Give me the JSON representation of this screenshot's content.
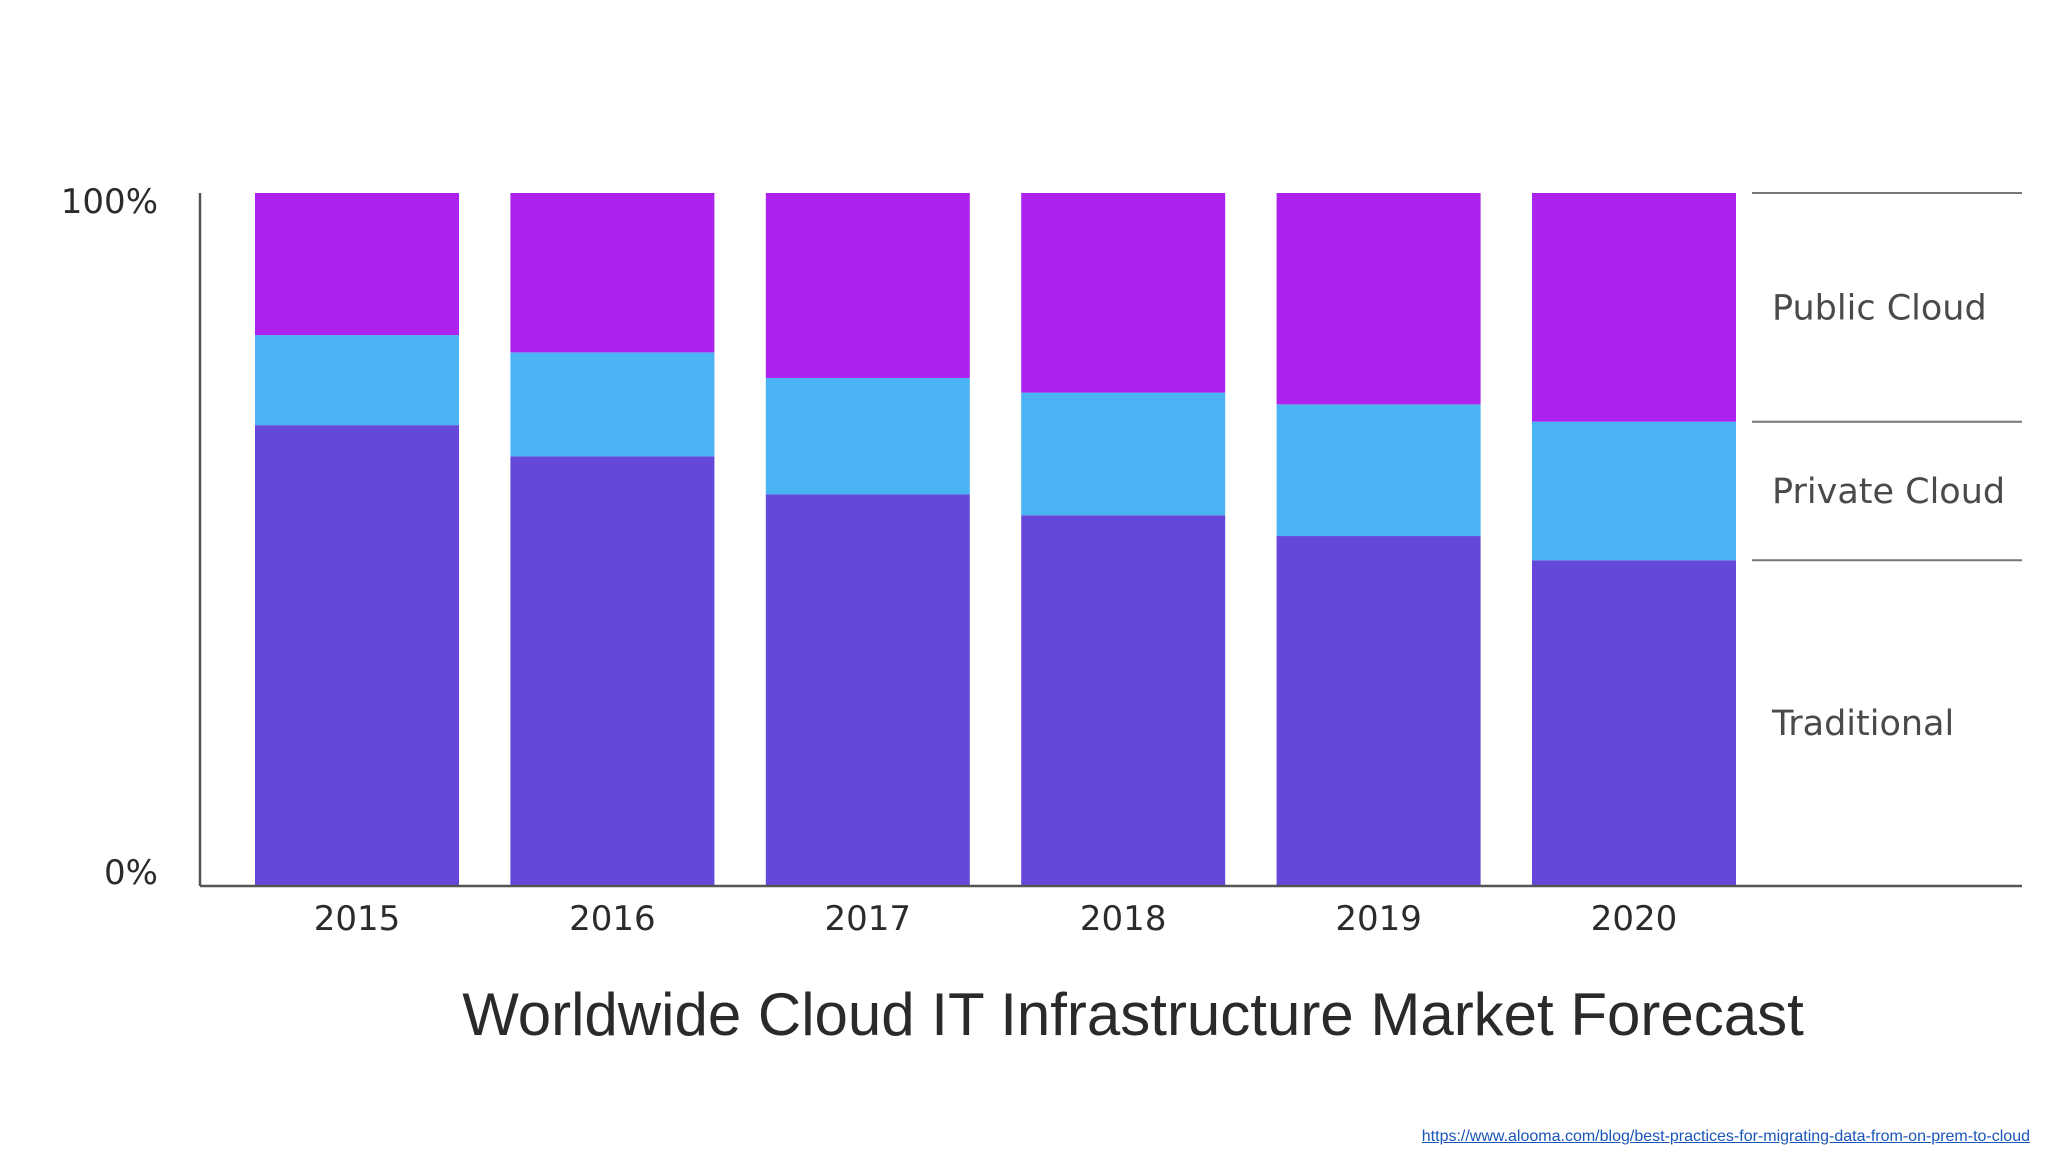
{
  "chart_data": {
    "type": "bar",
    "stacked": true,
    "title": "Worldwide Cloud IT Infrastructure Market Forecast",
    "categories": [
      "2015",
      "2016",
      "2017",
      "2018",
      "2019",
      "2020"
    ],
    "series": [
      {
        "name": "Traditional",
        "values": [
          66.5,
          62,
          56.5,
          53.5,
          50.5,
          47
        ],
        "color": "#6547d9"
      },
      {
        "name": "Private Cloud",
        "values": [
          13,
          15,
          16.8,
          17.7,
          19,
          20
        ],
        "color": "#4ab3f4"
      },
      {
        "name": "Public Cloud",
        "values": [
          20.5,
          23,
          26.7,
          28.8,
          30.5,
          33
        ],
        "color": "#ad22ec"
      }
    ],
    "y_tick_labels": [
      "100%",
      "0%"
    ],
    "ylim": [
      0,
      100
    ],
    "legend": {
      "placement": "right",
      "labels": [
        "Public Cloud",
        "Private Cloud",
        "Traditional"
      ]
    },
    "grid": false
  },
  "source": {
    "link_text": "https://www.alooma.com/blog/best-practices-for-migrating-data-from-on-prem-to-cloud"
  },
  "colors": {
    "traditional": "#6547d9",
    "private_cloud": "#4ab3f4",
    "public_cloud": "#ad22ec",
    "axis": "#555555"
  }
}
